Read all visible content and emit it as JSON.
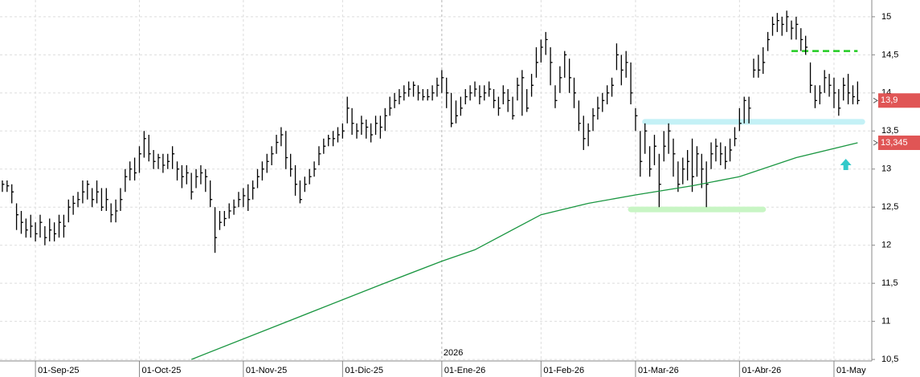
{
  "chart_data": {
    "type": "ohlc",
    "color": "#000000",
    "grid": true,
    "xlim": [
      -0.5,
      184
    ],
    "ylim": [
      10.48,
      15.22
    ],
    "yticks": [
      {
        "value": 10.5,
        "label": "10,5"
      },
      11,
      {
        "value": 11.5,
        "label": "11,5"
      },
      12,
      {
        "value": 12.5,
        "label": "12,5"
      },
      13,
      {
        "value": 13.5,
        "label": "13,5"
      },
      14,
      {
        "value": 14.5,
        "label": "14,5"
      },
      15
    ],
    "xticks": [
      {
        "value": 7,
        "label": "01-Sep-25"
      },
      {
        "value": 29,
        "label": "01-Oct-25"
      },
      {
        "value": 51,
        "label": "01-Nov-25"
      },
      {
        "value": 72,
        "label": "01-Dic-25"
      },
      {
        "value": 93,
        "label": "01-Ene-26"
      },
      {
        "value": 114,
        "label": "01-Feb-26"
      },
      {
        "value": 134,
        "label": "01-Mar-26"
      },
      {
        "value": 156,
        "label": "01-Abr-26"
      },
      {
        "value": 176,
        "label": "01-May"
      }
    ],
    "year_label": {
      "value": 93,
      "label": "2026"
    },
    "high": [
      12.85,
      12.85,
      12.8,
      12.55,
      12.45,
      12.35,
      12.4,
      12.3,
      12.4,
      12.25,
      12.35,
      12.3,
      12.4,
      12.4,
      12.6,
      12.65,
      12.7,
      12.85,
      12.85,
      12.75,
      12.85,
      12.75,
      12.75,
      12.55,
      12.6,
      12.75,
      13.0,
      13.1,
      13.15,
      13.3,
      13.5,
      13.45,
      13.25,
      13.2,
      13.2,
      13.2,
      13.3,
      13.1,
      13.05,
      13.05,
      12.95,
      13.0,
      13.05,
      13.0,
      12.85,
      12.5,
      12.45,
      12.45,
      12.55,
      12.6,
      12.7,
      12.75,
      12.8,
      12.85,
      13.0,
      13.1,
      13.2,
      13.3,
      13.45,
      13.55,
      13.5,
      13.2,
      13.05,
      12.85,
      12.9,
      13.0,
      13.1,
      13.3,
      13.4,
      13.45,
      13.5,
      13.55,
      13.6,
      13.95,
      13.8,
      13.6,
      13.7,
      13.65,
      13.6,
      13.7,
      13.7,
      13.8,
      13.95,
      14.0,
      14.05,
      14.1,
      14.15,
      14.15,
      14.1,
      14.05,
      14.05,
      14.1,
      14.2,
      14.3,
      14.2,
      14.0,
      13.9,
      13.95,
      14.05,
      14.1,
      14.15,
      14.1,
      14.1,
      14.15,
      14.05,
      13.95,
      14.1,
      14.05,
      13.95,
      14.2,
      14.3,
      14.05,
      14.25,
      14.6,
      14.7,
      14.8,
      14.6,
      14.1,
      14.35,
      14.55,
      14.45,
      14.2,
      13.9,
      13.7,
      13.6,
      13.8,
      13.95,
      14.0,
      14.1,
      14.2,
      14.65,
      14.5,
      14.55,
      14.4,
      13.8,
      13.5,
      13.6,
      13.3,
      13.45,
      13.2,
      13.5,
      13.6,
      13.4,
      13.1,
      13.15,
      13.25,
      13.4,
      13.3,
      13.2,
      13.1,
      13.35,
      13.4,
      13.35,
      13.3,
      13.4,
      13.55,
      13.8,
      13.95,
      13.95,
      14.45,
      14.5,
      14.6,
      14.8,
      15.0,
      15.05,
      15.0,
      15.08,
      14.95,
      15.0,
      14.85,
      14.75,
      14.4,
      14.1,
      14.1,
      14.3,
      14.25,
      14.2,
      14.05,
      14.2,
      14.25,
      14.1,
      14.15
    ],
    "low": [
      12.7,
      12.7,
      12.55,
      12.2,
      12.15,
      12.1,
      12.1,
      12.05,
      12.1,
      12.0,
      12.05,
      12.05,
      12.1,
      12.1,
      12.3,
      12.4,
      12.5,
      12.55,
      12.6,
      12.5,
      12.55,
      12.45,
      12.45,
      12.3,
      12.3,
      12.45,
      12.7,
      12.85,
      12.85,
      12.95,
      13.15,
      13.1,
      13.0,
      13.0,
      12.95,
      13.0,
      13.0,
      12.85,
      12.75,
      12.8,
      12.6,
      12.75,
      12.8,
      12.7,
      12.5,
      11.9,
      12.2,
      12.25,
      12.35,
      12.4,
      12.5,
      12.5,
      12.45,
      12.6,
      12.75,
      12.85,
      12.95,
      13.05,
      13.2,
      13.3,
      13.0,
      12.9,
      12.65,
      12.55,
      12.7,
      12.8,
      12.9,
      13.05,
      13.2,
      13.3,
      13.3,
      13.35,
      13.4,
      13.6,
      13.45,
      13.4,
      13.45,
      13.4,
      13.35,
      13.45,
      13.4,
      13.5,
      13.7,
      13.8,
      13.85,
      13.9,
      13.95,
      13.95,
      13.9,
      13.9,
      13.9,
      13.9,
      13.95,
      14.0,
      13.8,
      13.55,
      13.6,
      13.7,
      13.85,
      13.9,
      13.95,
      13.85,
      13.9,
      13.95,
      13.8,
      13.7,
      13.85,
      13.75,
      13.65,
      13.9,
      13.7,
      13.75,
      13.95,
      14.2,
      14.4,
      14.5,
      14.1,
      13.8,
      14.0,
      14.2,
      14.0,
      13.8,
      13.5,
      13.25,
      13.3,
      13.5,
      13.65,
      13.75,
      13.85,
      13.95,
      14.3,
      14.1,
      14.2,
      13.85,
      13.5,
      12.9,
      13.2,
      12.9,
      13.05,
      12.5,
      13.1,
      13.2,
      12.9,
      12.7,
      12.8,
      12.85,
      12.7,
      12.9,
      12.75,
      12.5,
      13.0,
      13.1,
      13.05,
      13.0,
      13.1,
      13.3,
      13.5,
      13.6,
      13.6,
      14.2,
      14.2,
      14.25,
      14.55,
      14.75,
      14.8,
      14.75,
      14.8,
      14.7,
      14.7,
      14.55,
      14.5,
      14.0,
      13.8,
      13.85,
      14.0,
      13.95,
      13.8,
      13.7,
      13.9,
      13.85,
      13.85,
      13.85
    ],
    "close": [
      12.8,
      12.78,
      12.7,
      12.4,
      12.3,
      12.2,
      12.25,
      12.15,
      12.3,
      12.1,
      12.2,
      12.15,
      12.3,
      12.25,
      12.5,
      12.55,
      12.6,
      12.7,
      12.8,
      12.6,
      12.7,
      12.5,
      12.6,
      12.4,
      12.45,
      12.6,
      12.9,
      13.0,
      12.95,
      13.2,
      13.4,
      13.2,
      13.1,
      13.15,
      13.05,
      13.1,
      13.2,
      13.0,
      12.9,
      12.95,
      12.7,
      12.9,
      12.95,
      12.9,
      12.6,
      12.1,
      12.3,
      12.35,
      12.45,
      12.5,
      12.6,
      12.65,
      12.6,
      12.75,
      12.9,
      13.0,
      13.1,
      13.2,
      13.35,
      13.45,
      13.15,
      13.0,
      12.8,
      12.6,
      12.8,
      12.9,
      13.0,
      13.2,
      13.3,
      13.4,
      13.4,
      13.45,
      13.5,
      13.8,
      13.6,
      13.5,
      13.6,
      13.55,
      13.45,
      13.6,
      13.55,
      13.7,
      13.8,
      13.9,
      13.95,
      14.0,
      14.05,
      14.1,
      14.0,
      13.95,
      13.95,
      14.0,
      14.1,
      14.2,
      14.0,
      13.6,
      13.7,
      13.8,
      13.95,
      14.0,
      14.05,
      13.95,
      14.0,
      14.05,
      13.9,
      13.8,
      14.0,
      13.9,
      13.7,
      14.1,
      14.2,
      13.8,
      14.1,
      14.4,
      14.6,
      14.7,
      14.4,
      13.9,
      14.2,
      14.5,
      14.2,
      14.0,
      13.6,
      13.4,
      13.5,
      13.7,
      13.8,
      13.9,
      14.0,
      14.1,
      14.5,
      14.3,
      14.4,
      14.0,
      13.7,
      13.1,
      13.5,
      13.0,
      13.3,
      12.8,
      13.3,
      13.5,
      13.2,
      12.8,
      13.0,
      13.1,
      12.9,
      13.2,
      13.0,
      12.8,
      13.2,
      13.3,
      13.2,
      13.1,
      13.25,
      13.4,
      13.6,
      13.9,
      13.8,
      14.3,
      14.3,
      14.4,
      14.7,
      14.9,
      14.95,
      14.9,
      15.0,
      14.85,
      14.9,
      14.7,
      14.6,
      14.1,
      13.9,
      14.0,
      14.2,
      14.1,
      14.0,
      13.8,
      14.1,
      14.0,
      13.95,
      13.9
    ],
    "ma": {
      "color": "#1a9641",
      "x": [
        40,
        60,
        80,
        93,
        100,
        114,
        124,
        134,
        146,
        156,
        168,
        181
      ],
      "values": [
        10.5,
        10.99,
        11.48,
        11.79,
        11.94,
        12.4,
        12.55,
        12.66,
        12.78,
        12.9,
        13.15,
        13.345
      ]
    },
    "price_labels": [
      {
        "value": 13.9,
        "label": "13,9",
        "color": "#e05555"
      },
      {
        "value": 13.345,
        "label": "13,345",
        "color": "#e05555"
      }
    ],
    "levels": [
      {
        "value": 14.55,
        "x": [
          167,
          181
        ],
        "color": "#22cc22",
        "style": "dashed"
      },
      {
        "value": 13.62,
        "x": [
          136,
          182
        ],
        "color": "#c4f1f6",
        "style": "band"
      },
      {
        "value": 12.47,
        "x": [
          133,
          161
        ],
        "color": "#c8f5c4",
        "style": "band"
      }
    ],
    "arrow": {
      "x": 178.5,
      "value": 13.05,
      "color": "#33c9c9"
    }
  }
}
